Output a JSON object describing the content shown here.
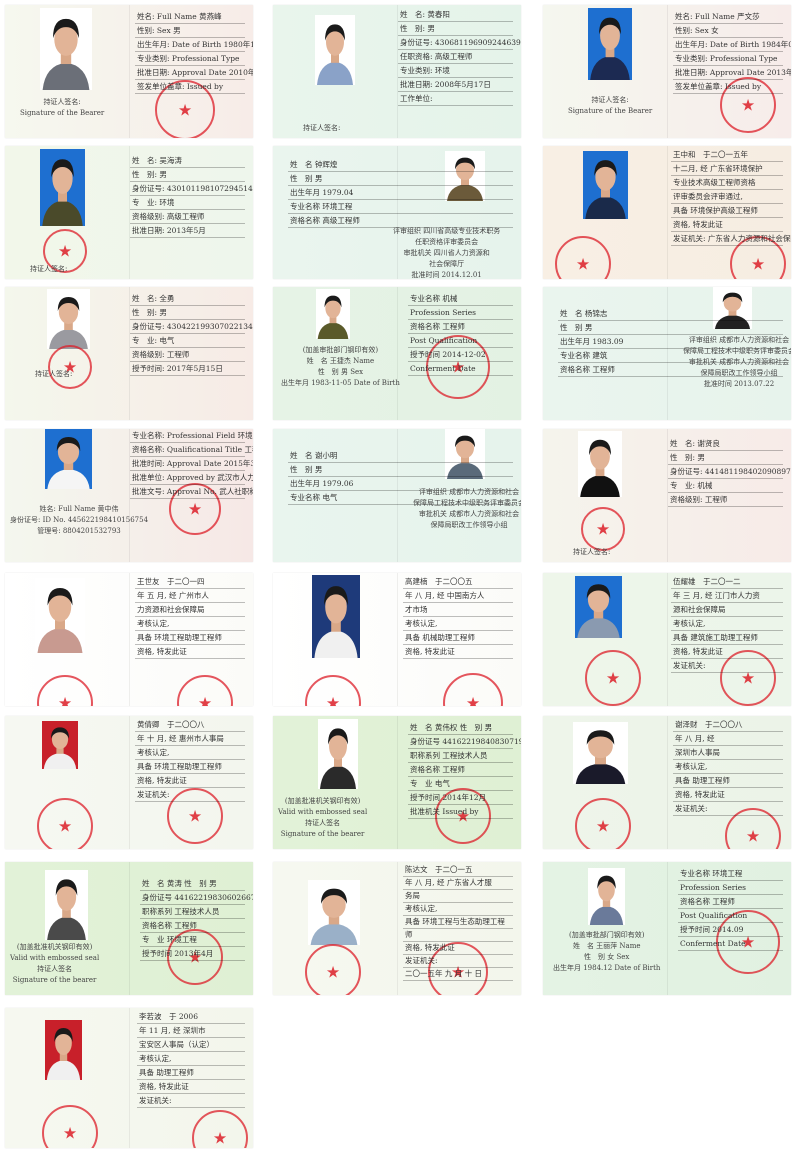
{
  "colors": {
    "seal": "#dc1e28",
    "photo_blue": "#1e6fd0",
    "photo_red": "#c8202a"
  },
  "certificates": [
    {
      "bg": [
        "#f6f8ef",
        "#f7ece8"
      ],
      "photo_bg": "#ffffff",
      "cloth": "#6b6f78",
      "side_text": [
        "持证人签名:",
        "Signature of the Bearer"
      ],
      "lines": [
        "姓名: Full Name  黄燕峰",
        "性别: Sex  男",
        "出生年月: Date of Birth  1980年12月",
        "专业类别: Professional Type",
        "批准日期: Approval Date  2010年06月19日",
        "签发单位盖章: Issued by"
      ]
    },
    {
      "bg": [
        "#e9f5ec",
        "#e5f3ea"
      ],
      "photo_bg": "#ffffff",
      "cloth": "#8aa2c8",
      "side_text": [
        "持证人签名:"
      ],
      "lines": [
        "姓　名: 黄春阳",
        "性　别: 男",
        "身份证号: 430681196909244639",
        "任职资格: 高级工程师",
        "专业类别: 环境",
        "批准日期: 2008年5月17日",
        "工作单位:"
      ]
    },
    {
      "bg": [
        "#f5f7ef",
        "#f7ecea"
      ],
      "photo_bg": "#1e6fd0",
      "cloth": "#1c2a52",
      "side_text": [
        "持证人签名:",
        "Signature of the Bearer"
      ],
      "lines": [
        "姓名: Full Name  严文莎",
        "性别: Sex  女",
        "出生年月: Date of Birth  1984年07月",
        "专业类别: Professional Type",
        "批准日期: Approval Date  2013年09月16日",
        "签发单位盖章: Issued by"
      ]
    },
    {
      "bg": [
        "#f2f7ea",
        "#eef6ec"
      ],
      "photo_bg": "#1e6fd0",
      "cloth": "#4a4a2a",
      "side_text": [
        "持证人签名:"
      ],
      "lines": [
        "姓　名: 吴海涛",
        "性　别: 男",
        "身份证号: 430101198107294514",
        "专　业: 环境",
        "资格级别: 高级工程师",
        "批准日期: 2013年5月"
      ]
    },
    {
      "bg": [
        "#eaf5ee",
        "#e6f3ec"
      ],
      "photo_bg": "#ffffff",
      "cloth": "#6b5a3a",
      "side_text": [
        "评审组织 四川省高级专业技术职务",
        "任职资格评审委员会",
        "审批机关 四川省人力资源和",
        "社会保障厅",
        "批准时间 2014.12.01"
      ],
      "lines": [
        "姓　名  钟辉煌",
        "性　别  男",
        "出生年月  1979.04",
        "专业名称  环境工程",
        "资格名称  高级工程师"
      ]
    },
    {
      "bg": [
        "#f8efe4",
        "#f6ede2"
      ],
      "photo_bg": "#1e6fd0",
      "cloth": "#1a2a4a",
      "side_text": [],
      "lines": [
        "王中和　于二〇一五年",
        "十二月, 经 广东省环境保护",
        "专业技术高级工程师资格",
        "评审委员会评审通过,",
        "具备 环境保护高级工程师",
        "资格, 特发此证",
        "发证机关: 广东省人力资源和社会保障厅"
      ]
    },
    {
      "bg": [
        "#f4f7ec",
        "#f7ebe6"
      ],
      "photo_bg": "#ffffff",
      "cloth": "#9a9aa0",
      "side_text": [
        "持证人签名:"
      ],
      "lines": [
        "姓　名: 全勇",
        "性　别: 男",
        "身份证号: 430422199307022134",
        "专　业: 电气",
        "资格级别: 工程师",
        "授予时间: 2017年5月15日"
      ]
    },
    {
      "bg": [
        "#e6f3e6",
        "#e3f2e3"
      ],
      "photo_bg": "#ffffff",
      "cloth": "#5a5a2a",
      "side_text": [
        "(加盖审批部门钢印有效)",
        "姓　名  王捷杰  Name",
        "性　别  男  Sex",
        "出生年月  1983-11-05  Date of Birth"
      ],
      "lines": [
        "专业名称  机械",
        "Profession Series",
        "资格名称  工程师",
        "Post Qualification",
        "授予时间  2014-12-02",
        "Conferment Date"
      ]
    },
    {
      "bg": [
        "#eaf5ee",
        "#e7f3ec"
      ],
      "photo_bg": "#ffffff",
      "cloth": "#222222",
      "side_text": [
        "评审组织 成都市人力资源和社会",
        "保障局工程技术中级职务评审委员会",
        "审批机关 成都市人力资源和社会",
        "保障局职改工作领导小组",
        "批准时间  2013.07.22"
      ],
      "lines": [
        "姓　名  杨锦志",
        "性　别  男",
        "出生年月  1983.09",
        "专业名称  建筑",
        "资格名称  工程师"
      ]
    },
    {
      "bg": [
        "#f4f7ee",
        "#f6e8e6"
      ],
      "photo_bg": "#1e6fd0",
      "cloth": "#f5f5f5",
      "side_text": [
        "姓名: Full Name  黄中伟",
        "身份证号: ID No.  445622198410156754",
        "管理号:  8804201532793"
      ],
      "lines": [
        "专业名称: Professional Field  环境工程",
        "资格名称: Qualificational Title  工程师",
        "批准时间: Approval Date  2015年3月22日",
        "批准单位: Approved by  武汉市人力资源和社会保障局",
        "批准文号: Approval No.  武人社职称〔2015〕40号"
      ]
    },
    {
      "bg": [
        "#e9f5ee",
        "#e6f3ec"
      ],
      "photo_bg": "#ffffff",
      "cloth": "#5a6a7a",
      "side_text": [
        "评审组织 成都市人力资源和社会",
        "保障局工程技术中级职务评审委员会",
        "审批机关 成都市人力资源和社会",
        "保障局职改工作领导小组"
      ],
      "lines": [
        "姓　名  谢小明",
        "性　别  男",
        "出生年月  1979.06",
        "专业名称  电气"
      ]
    },
    {
      "bg": [
        "#f5f4ec",
        "#f7ebe8"
      ],
      "photo_bg": "#ffffff",
      "cloth": "#111111",
      "side_text": [
        "持证人签名:"
      ],
      "lines": [
        "姓　名: 谢贤良",
        "性　别: 男",
        "身份证号: 441481198402090897",
        "专　业: 机械",
        "资格级别: 工程师"
      ]
    },
    {
      "bg": [
        "#ffffff",
        "#fbfbf8"
      ],
      "photo_bg": "#ffffff",
      "cloth": "#c89a90",
      "side_text": [],
      "lines": [
        "王世友　于二〇一四",
        "年 五 月, 经 广州市人",
        "力资源和社会保障局",
        "考核认定,",
        "具备 环境工程助理工程师",
        "资格, 特发此证"
      ]
    },
    {
      "bg": [
        "#ffffff",
        "#fbfbf8"
      ],
      "photo_bg": "#1e3a7a",
      "cloth": "#f0f0f0",
      "side_text": [],
      "lines": [
        "高建楠　于二〇〇五",
        "年 八 月, 经 中国南方人",
        "才市场",
        "考核认定,",
        "具备 机械助理工程师",
        "资格, 特发此证"
      ]
    },
    {
      "bg": [
        "#eef6ea",
        "#ecf5ea"
      ],
      "photo_bg": "#1e6fd0",
      "cloth": "#8a9ab0",
      "side_text": [],
      "lines": [
        "伍耀雄　于二〇一二",
        "年 三 月, 经 江门市人力资",
        "源和社会保障局",
        "考核认定,",
        "具备 建筑施工助理工程师",
        "资格, 特发此证",
        "发证机关:"
      ]
    },
    {
      "bg": [
        "#f6f8f2",
        "#f3f6ee"
      ],
      "photo_bg": "#c8202a",
      "cloth": "#f0f0f0",
      "side_text": [],
      "lines": [
        "黄倩卿　于二〇〇八",
        "年 十 月, 经 惠州市人事局",
        "考核认定,",
        "具备 环境工程助理工程师",
        "资格, 特发此证",
        "发证机关:"
      ]
    },
    {
      "bg": [
        "#e2f2d8",
        "#dff0d4"
      ],
      "photo_bg": "#ffffff",
      "cloth": "#2a2a2a",
      "side_text": [
        "(加盖批准机关钢印有效)",
        "Valid with embossed seal",
        "持证人签名",
        "Signature of the bearer"
      ],
      "lines": [
        "姓　名 黄伟权  性　别 男",
        "身份证号 441622198408307196",
        "职称系列 工程技术人员",
        "资格名称 工程师",
        "专　业 电气",
        "授予时间 2014年12月",
        "批准机关 Issued by"
      ]
    },
    {
      "bg": [
        "#eef5ea",
        "#ecf3e8"
      ],
      "photo_bg": "#ffffff",
      "cloth": "#1a1a2a",
      "side_text": [],
      "lines": [
        "谢泽财　于二〇〇八",
        "年 八 月, 经",
        "深圳市人事局",
        "考核认定,",
        "具备 助理工程师",
        "资格, 特发此证",
        "发证机关:"
      ]
    },
    {
      "bg": [
        "#e2f2d8",
        "#dff0d4"
      ],
      "photo_bg": "#ffffff",
      "cloth": "#4a4a4a",
      "side_text": [
        "(加盖批准机关钢印有效)",
        "Valid with embossed seal",
        "持证人签名",
        "Signature of the bearer"
      ],
      "lines": [
        "姓　名 黄涛  性　别 男",
        "身份证号 441622198306026677",
        "职称系列 工程技术人员",
        "资格名称 工程师",
        "专　业 环境工程",
        "授予时间 2013年4月"
      ]
    },
    {
      "bg": [
        "#f6f8f0",
        "#f3f6ec"
      ],
      "photo_bg": "#ffffff",
      "cloth": "#9ab0c8",
      "side_text": [],
      "lines": [
        "陈达文　于二〇一五",
        "年 八 月, 经 广东省人才服",
        "务局",
        "考核认定,",
        "具备 环境工程与生态助理工程",
        "师",
        "资格, 特发此证",
        "发证机关:",
        "二〇一五年 九 月 十 日"
      ]
    },
    {
      "bg": [
        "#e4f3e4",
        "#e1f1e1"
      ],
      "photo_bg": "#ffffff",
      "cloth": "#6a7a9a",
      "side_text": [
        "(加盖审批部门钢印有效)",
        "姓　名  王丽萍  Name",
        "性　别  女  Sex",
        "出生年月  1984.12  Date of Birth"
      ],
      "lines": [
        "专业名称  环境工程",
        "Profession Series",
        "资格名称  工程师",
        "Post Qualification",
        "授予时间  2014.09",
        "Conferment Date"
      ]
    },
    {
      "bg": [
        "#f6f8f0",
        "#f3f6ec"
      ],
      "photo_bg": "#c8202a",
      "cloth": "#f0f0f0",
      "side_text": [],
      "lines": [
        "李若波　于 2006",
        "年 11 月, 经 深圳市",
        "宝安区人事局（认定）",
        "考核认定,",
        "具备 助理工程师",
        "资格, 特发此证",
        "发证机关:"
      ]
    }
  ]
}
